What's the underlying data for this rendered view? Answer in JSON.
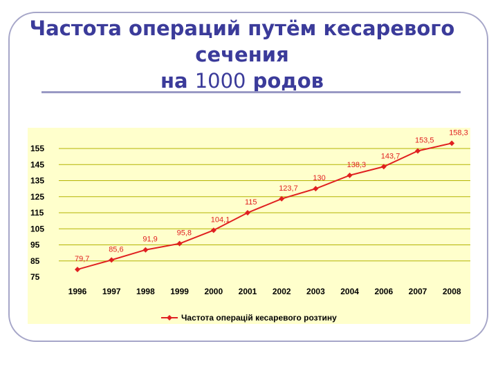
{
  "title": {
    "line1": "Частота операций путём кесаревого",
    "line2": "сечения",
    "line3_prefix": "на",
    "line3_number": "1000",
    "line3_suffix": "родов"
  },
  "colors": {
    "title": "#3b3b9a",
    "frame": "#a6a6c8",
    "plot_background": "#ffffcc",
    "gridline": "#b3b300",
    "series": "#e02020",
    "text": "#000000"
  },
  "chart_data": {
    "type": "line",
    "categories": [
      "1996",
      "1997",
      "1998",
      "1999",
      "2000",
      "2001",
      "2002",
      "2003",
      "2004",
      "2006",
      "2007",
      "2008"
    ],
    "series": [
      {
        "name": "Частота операцій кесаревого розтину",
        "values": [
          79.7,
          85.6,
          91.9,
          95.8,
          104.1,
          115,
          123.7,
          130,
          138.3,
          143.7,
          153.5,
          158.3
        ],
        "labels": [
          "79,7",
          "85,6",
          "91,9",
          "95,8",
          "104,1",
          "115",
          "123,7",
          "130",
          "138,3",
          "143,7",
          "153,5",
          "158,3"
        ]
      }
    ],
    "yticks": [
      "75",
      "85",
      "95",
      "105",
      "115",
      "125",
      "135",
      "145",
      "155"
    ],
    "ylim": [
      75,
      155
    ],
    "grid": true,
    "legend": "bottom",
    "marker": "diamond"
  }
}
